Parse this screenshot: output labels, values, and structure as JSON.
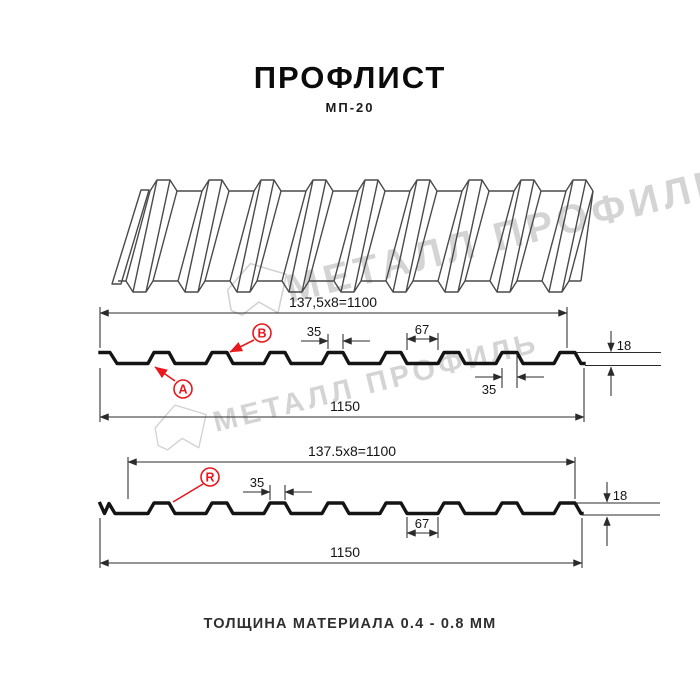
{
  "header": {
    "title": "ПРОФЛИСТ",
    "subtitle": "МП-20"
  },
  "watermark": {
    "brand": "МЕТАЛЛ ПРОФИЛЬ"
  },
  "profile_top": {
    "module_dim": "137,5x8=1100",
    "rib_top_width": "35",
    "rib_base_width": "67",
    "height": "18",
    "rib_bottom_width": "35",
    "overall_width": "1150",
    "point_a": "A",
    "point_b": "B"
  },
  "profile_bottom": {
    "module_dim": "137.5x8=1100",
    "rib_top_width": "35",
    "rib_base_width": "67",
    "height": "18",
    "overall_width": "1150",
    "point_r": "R"
  },
  "footer": {
    "note": "ТОЛЩИНА МАТЕРИАЛА 0.4 - 0.8 ММ"
  },
  "colors": {
    "accent_red": "#e8181c",
    "drawing_line": "#141414",
    "watermark_gray": "#d4d4d4"
  }
}
